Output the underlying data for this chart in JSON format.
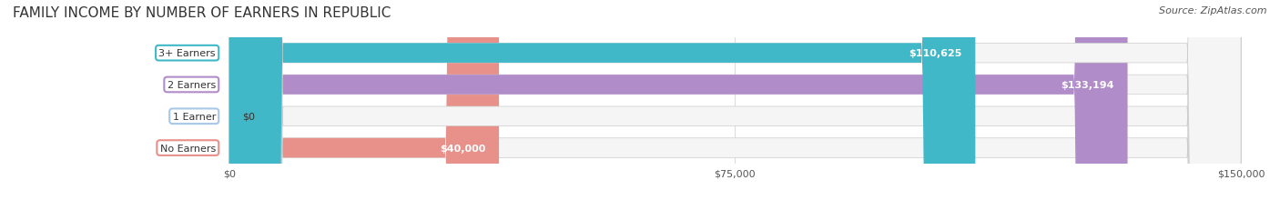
{
  "title": "FAMILY INCOME BY NUMBER OF EARNERS IN REPUBLIC",
  "source": "Source: ZipAtlas.com",
  "categories": [
    "No Earners",
    "1 Earner",
    "2 Earners",
    "3+ Earners"
  ],
  "values": [
    40000,
    0,
    133194,
    110625
  ],
  "value_labels": [
    "$40,000",
    "$0",
    "$133,194",
    "$110,625"
  ],
  "bar_colors": [
    "#E8908A",
    "#A8C8E8",
    "#B08CC8",
    "#40B8C8"
  ],
  "bar_bg_colors": [
    "#F5F5F5",
    "#F5F5F5",
    "#F5F5F5",
    "#F5F5F5"
  ],
  "xlim": [
    0,
    150000
  ],
  "xticks": [
    0,
    75000,
    150000
  ],
  "xtick_labels": [
    "$0",
    "$75,000",
    "$150,000"
  ],
  "background_color": "#FFFFFF",
  "title_fontsize": 11,
  "source_fontsize": 8,
  "label_fontsize": 8,
  "value_fontsize": 8,
  "tick_fontsize": 8
}
